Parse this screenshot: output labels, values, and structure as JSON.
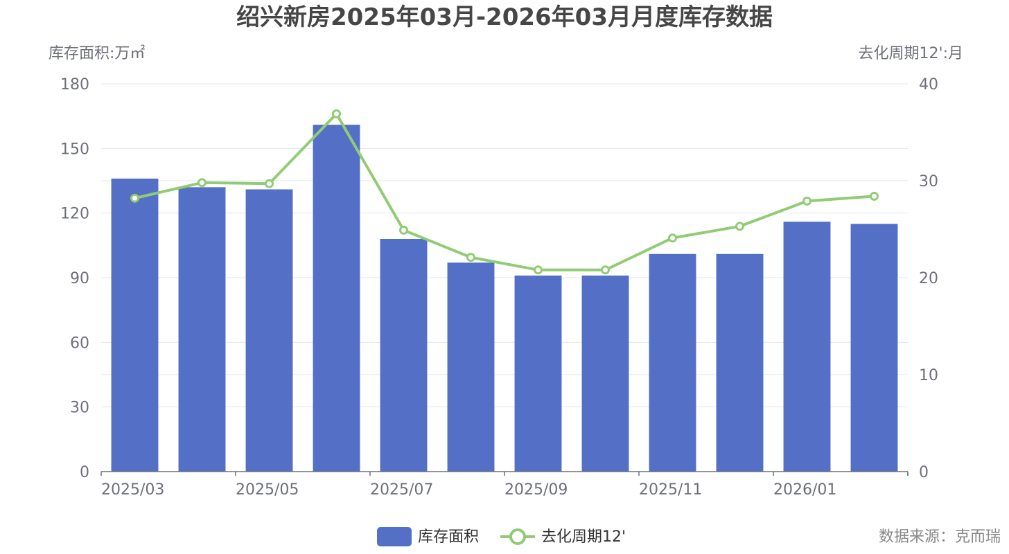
{
  "chart_data": {
    "type": "bar",
    "title": "绍兴新房2025年03月-2026年03月月度库存数据",
    "y_left": {
      "label": "库存面积:万㎡",
      "min": 0,
      "max": 180,
      "ticks": [
        0,
        30,
        60,
        90,
        120,
        150,
        180
      ]
    },
    "y_right": {
      "label": "去化周期12':月",
      "min": 0,
      "max": 40,
      "ticks": [
        0,
        10,
        20,
        30,
        40
      ]
    },
    "categories": [
      "2025/03",
      "2025/04",
      "2025/05",
      "2025/06",
      "2025/07",
      "2025/08",
      "2025/09",
      "2025/10",
      "2025/11",
      "2025/12",
      "2026/01",
      "2026/02"
    ],
    "x_tick_labels": [
      "2025/03",
      "2025/05",
      "2025/07",
      "2025/09",
      "2025/11",
      "2026/01"
    ],
    "series": [
      {
        "name": "库存面积",
        "type": "bar",
        "axis": "left",
        "color": "#5470c6",
        "values": [
          136,
          132,
          131,
          161,
          108,
          97,
          91,
          91,
          101,
          101,
          116,
          115
        ]
      },
      {
        "name": "去化周期12'",
        "type": "line",
        "axis": "right",
        "color": "#91cc75",
        "values": [
          28.2,
          29.8,
          29.7,
          36.9,
          24.9,
          22.1,
          20.8,
          20.8,
          24.1,
          25.3,
          27.9,
          28.4
        ]
      }
    ],
    "grid": true,
    "legend": "bottom-center"
  },
  "source": "数据来源：克而瑞"
}
